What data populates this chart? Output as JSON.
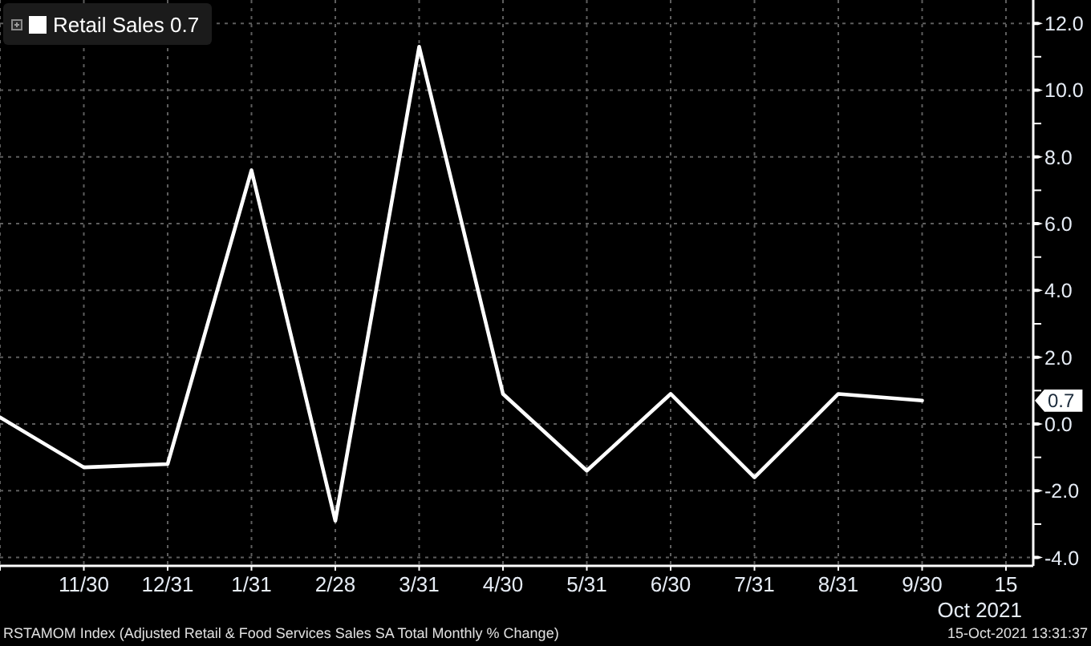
{
  "chart_data": {
    "type": "line",
    "categories": [
      null,
      "11/30",
      "12/31",
      "1/31",
      "2/28",
      "3/31",
      "4/30",
      "5/31",
      "6/30",
      "7/31",
      "8/31",
      "9/30",
      "15"
    ],
    "series": [
      {
        "name": "Retail Sales 0.7",
        "color": "#ffffff",
        "values": [
          0.2,
          -1.3,
          -1.2,
          7.6,
          -2.9,
          11.3,
          0.9,
          -1.4,
          0.9,
          -1.6,
          0.9,
          0.7,
          null
        ]
      }
    ],
    "xlabel": "Oct 2021",
    "ylim": [
      -4.25,
      12.7
    ],
    "yticks": [
      {
        "value": -4,
        "label": "-4.0"
      },
      {
        "value": -3,
        "label": null
      },
      {
        "value": -2,
        "label": "-2.0"
      },
      {
        "value": -1,
        "label": null
      },
      {
        "value": 0,
        "label": "0.0"
      },
      {
        "value": 1,
        "label": null
      },
      {
        "value": 2,
        "label": "2.0"
      },
      {
        "value": 3,
        "label": null
      },
      {
        "value": 4,
        "label": "4.0"
      },
      {
        "value": 5,
        "label": null
      },
      {
        "value": 6,
        "label": "6.0"
      },
      {
        "value": 7,
        "label": null
      },
      {
        "value": 8,
        "label": "8.0"
      },
      {
        "value": 9,
        "label": null
      },
      {
        "value": 10,
        "label": "10.0"
      },
      {
        "value": 11,
        "label": null
      },
      {
        "value": 12,
        "label": "12.0"
      }
    ],
    "grid": true,
    "legend": "top left",
    "marker": "none",
    "line_style": "solid",
    "annotations": [
      "0.7",
      "RSTAMOM Index (Adjusted Retail & Food Services Sales SA Total Monthly % Change)",
      "15-Oct-2021 13:31:37"
    ]
  }
}
